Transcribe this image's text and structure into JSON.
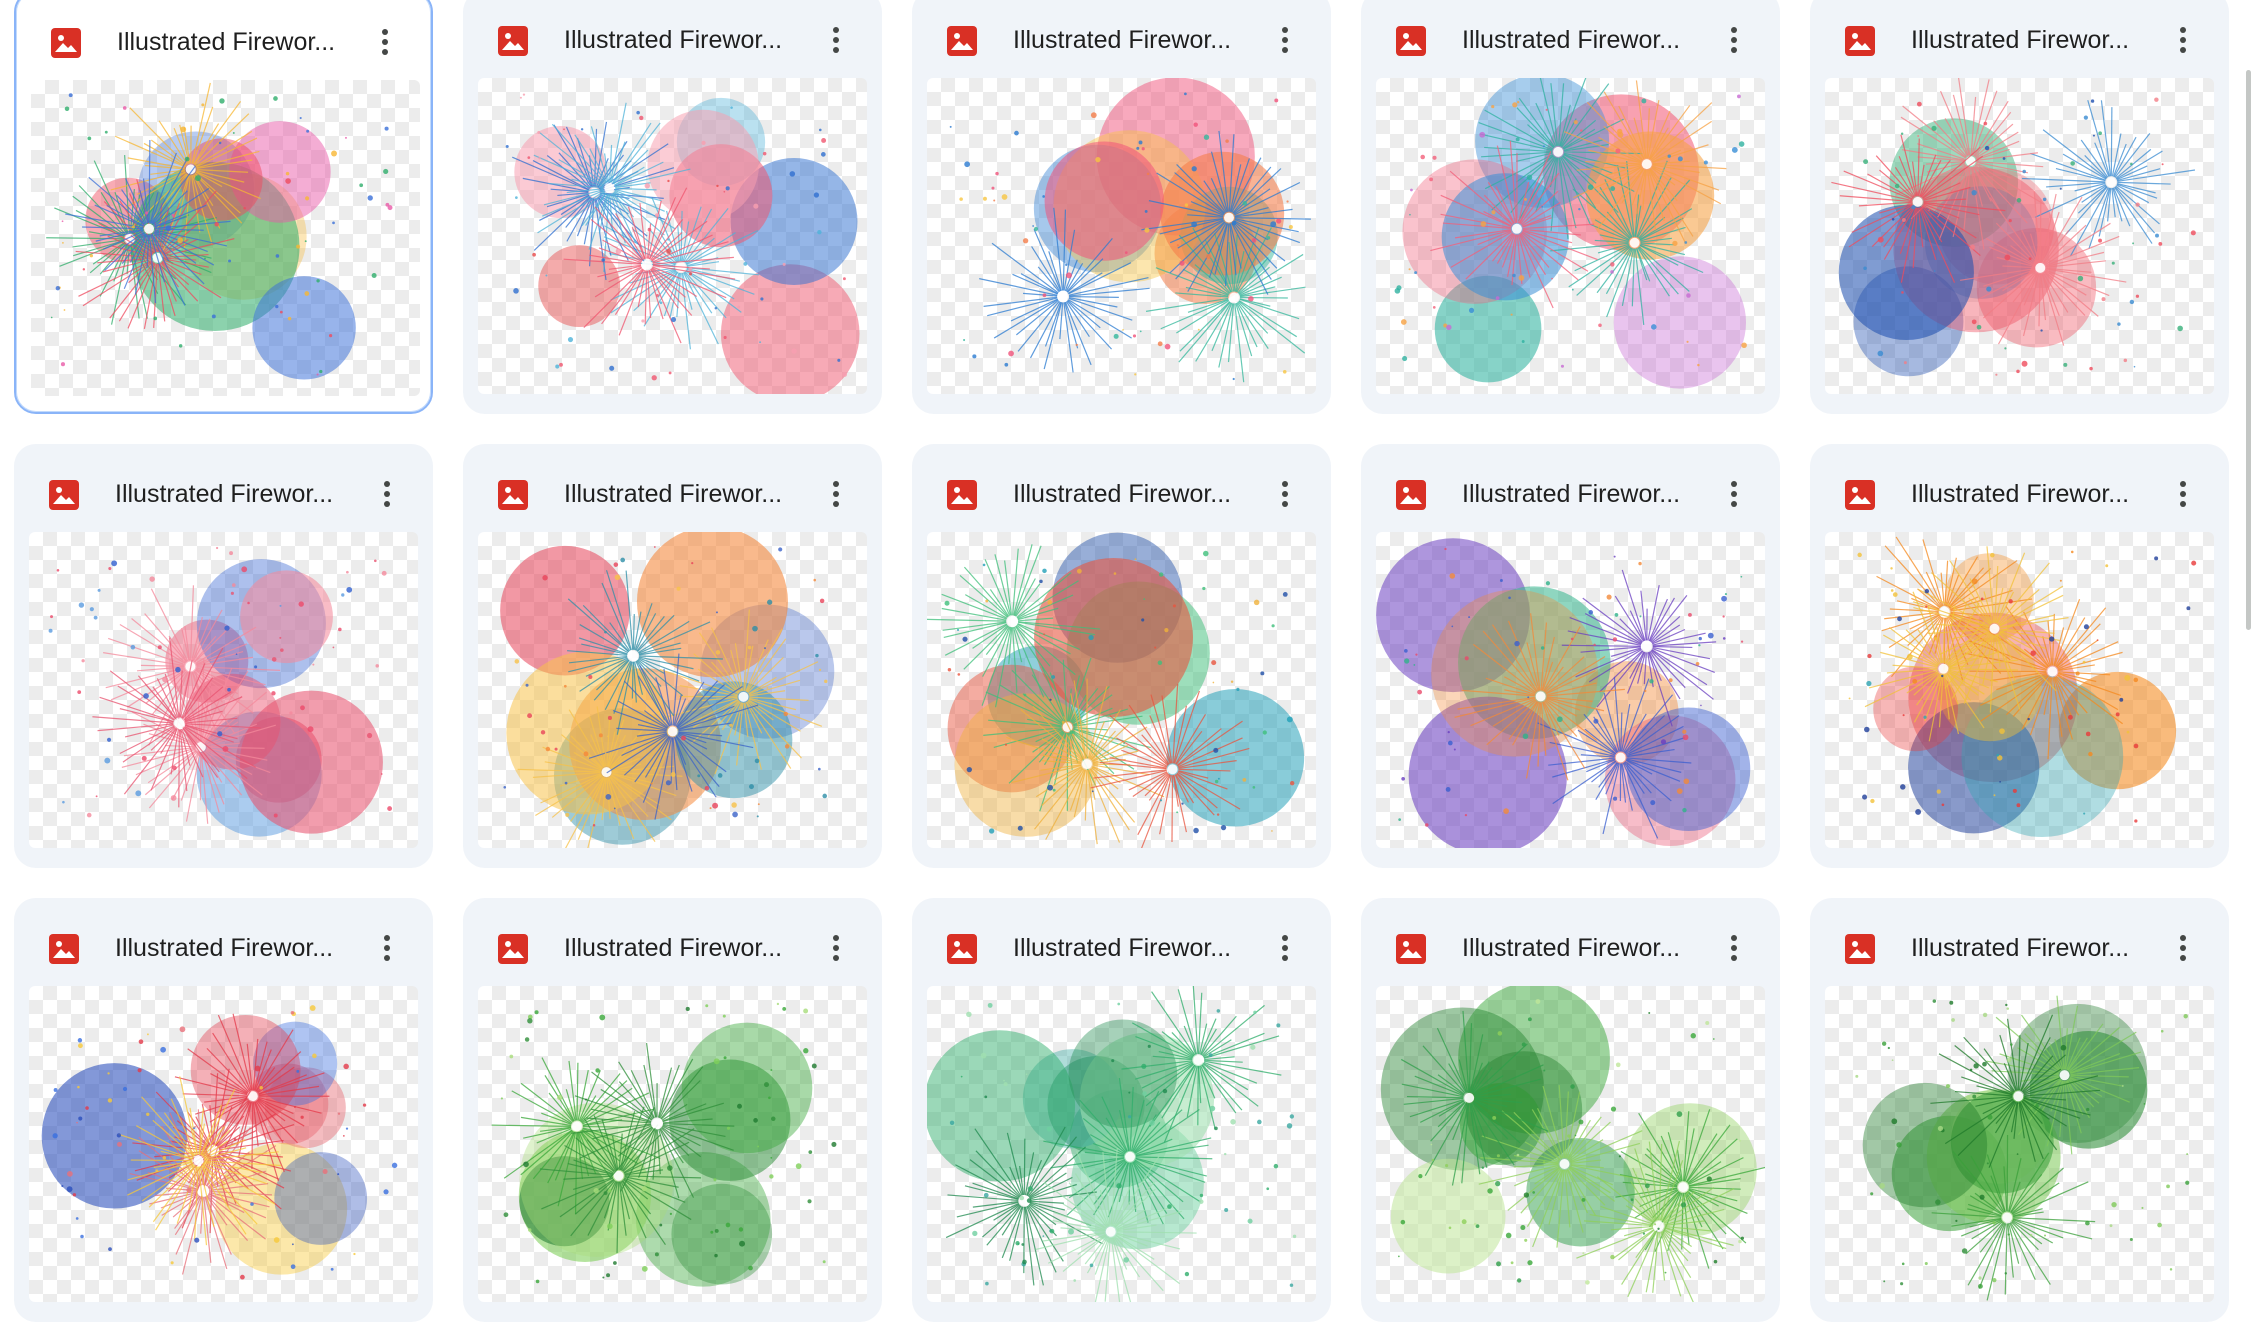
{
  "files": [
    {
      "name": "Illustrated Firewor...",
      "type_icon": "image-file-icon",
      "selected": true,
      "palette": [
        "#ef4b5f",
        "#3a6fd8",
        "#f7b733",
        "#2fae6b",
        "#e85aa8"
      ]
    },
    {
      "name": "Illustrated Firewor...",
      "type_icon": "image-file-icon",
      "selected": false,
      "palette": [
        "#f0566f",
        "#f79fb0",
        "#2f6fd0",
        "#4fb3d9",
        "#e84a4a"
      ]
    },
    {
      "name": "Illustrated Firewor...",
      "type_icon": "image-file-icon",
      "selected": false,
      "palette": [
        "#f47d4a",
        "#f0527a",
        "#2b7bd1",
        "#33b89c",
        "#f7c542"
      ]
    },
    {
      "name": "Illustrated Firewor...",
      "type_icon": "image-file-icon",
      "selected": false,
      "palette": [
        "#f3607a",
        "#3a8fd6",
        "#f7a244",
        "#2fb2a0",
        "#c86ad3"
      ]
    },
    {
      "name": "Illustrated Firewor...",
      "type_icon": "image-file-icon",
      "selected": false,
      "palette": [
        "#ef4c5d",
        "#1e4fb0",
        "#38b07a",
        "#f27d86",
        "#3a8bd1"
      ]
    },
    {
      "name": "Illustrated Firewor...",
      "type_icon": "image-file-icon",
      "selected": false,
      "palette": [
        "#ec4a6a",
        "#e85470",
        "#2f5fd0",
        "#5a9be0",
        "#f48a9c"
      ]
    },
    {
      "name": "Illustrated Firewor...",
      "type_icon": "image-file-icon",
      "selected": false,
      "palette": [
        "#2e8fa8",
        "#f5883a",
        "#e8445a",
        "#3b63c8",
        "#f7c24a"
      ]
    },
    {
      "name": "Illustrated Firewor...",
      "type_icon": "image-file-icon",
      "selected": false,
      "palette": [
        "#22a0b8",
        "#e8553f",
        "#1f4fa8",
        "#f0b13b",
        "#3fbf7a"
      ]
    },
    {
      "name": "Illustrated Firewor...",
      "type_icon": "image-file-icon",
      "selected": false,
      "palette": [
        "#6a3fc0",
        "#f38a3a",
        "#e84a6a",
        "#2fb38a",
        "#3a5fd0"
      ]
    },
    {
      "name": "Illustrated Firewor...",
      "type_icon": "image-file-icon",
      "selected": false,
      "palette": [
        "#f58a1f",
        "#e83a3a",
        "#1f3f9a",
        "#2fa5b3",
        "#f2c23a"
      ]
    },
    {
      "name": "Illustrated Firewor...",
      "type_icon": "image-file-icon",
      "selected": false,
      "palette": [
        "#e43a4a",
        "#2a4fbd",
        "#f7c93a",
        "#e8707a",
        "#3a6fe0"
      ]
    },
    {
      "name": "Illustrated Firewor...",
      "type_icon": "image-file-icon",
      "selected": false,
      "palette": [
        "#3aa83a",
        "#2f8f3a",
        "#7fcf5a",
        "#1f7a2f",
        "#a8dc7a"
      ]
    },
    {
      "name": "Illustrated Firewor...",
      "type_icon": "image-file-icon",
      "selected": false,
      "palette": [
        "#2fae6b",
        "#1f8a4f",
        "#6fd0a0",
        "#3aa8a0",
        "#a0e0b0"
      ]
    },
    {
      "name": "Illustrated Firewor...",
      "type_icon": "image-file-icon",
      "selected": false,
      "palette": [
        "#3aa83a",
        "#1f7f2a",
        "#8fd05a",
        "#2f9f4a",
        "#bfe69a"
      ]
    },
    {
      "name": "Illustrated Firewor...",
      "type_icon": "image-file-icon",
      "selected": false,
      "palette": [
        "#3aa03a",
        "#1f7a2a",
        "#7fc95a",
        "#2f8f3a",
        "#a8d884"
      ]
    }
  ],
  "colors": {
    "card_bg": "#f0f4f9",
    "selected_border": "#8ab4f8",
    "image_icon_red": "#d93025",
    "more_dots": "#444746"
  }
}
